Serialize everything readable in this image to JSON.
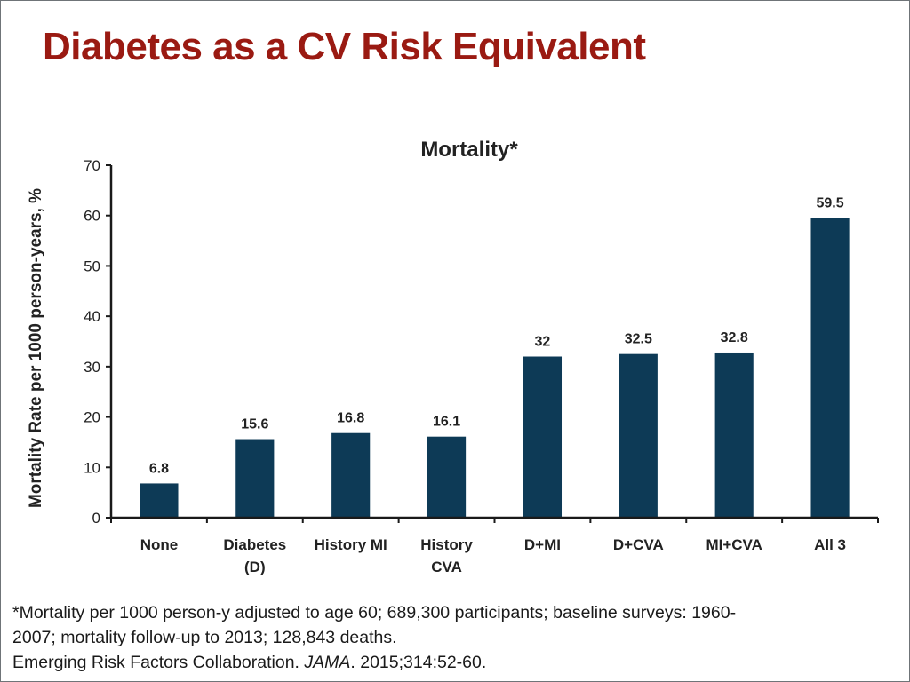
{
  "slide": {
    "title": "Diabetes as a CV Risk Equivalent",
    "footnote_line1": "*Mortality per 1000 person-y adjusted to age 60; 689,300 participants; baseline surveys: 1960-",
    "footnote_line2": "2007; mortality follow-up to 2013; 128,843 deaths.",
    "citation_author": "Emerging Risk Factors Collaboration. ",
    "citation_journal": "JAMA",
    "citation_rest": ". 2015;314:52-60."
  },
  "colors": {
    "title": "#9a1a12",
    "bar": "#0d3a56",
    "axis": "#1a1a1a"
  },
  "chart_data": {
    "type": "bar",
    "title": "Mortality*",
    "xlabel": "",
    "ylabel": "Mortality Rate per 1000 person-years, %",
    "ylim": [
      0,
      70
    ],
    "yticks": [
      0,
      10,
      20,
      30,
      40,
      50,
      60,
      70
    ],
    "grid": false,
    "legend": "none",
    "categories": [
      [
        "None"
      ],
      [
        "Diabetes",
        "(D)"
      ],
      [
        "History MI"
      ],
      [
        "History",
        "CVA"
      ],
      [
        "D+MI"
      ],
      [
        "D+CVA"
      ],
      [
        "MI+CVA"
      ],
      [
        "All 3"
      ]
    ],
    "values": [
      6.8,
      15.6,
      16.8,
      16.1,
      32,
      32.5,
      32.8,
      59.5
    ],
    "data_labels": [
      "6.8",
      "15.6",
      "16.8",
      "16.1",
      "32",
      "32.5",
      "32.8",
      "59.5"
    ]
  }
}
